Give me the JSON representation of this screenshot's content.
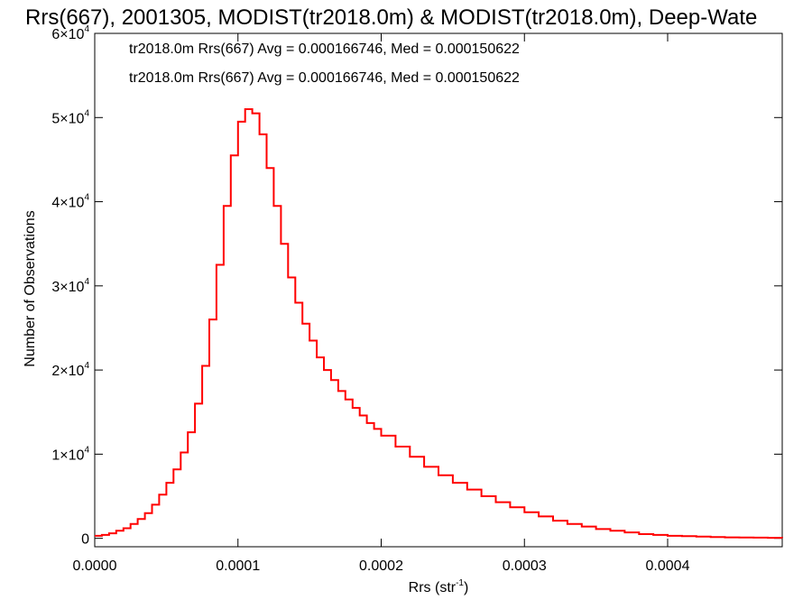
{
  "chart_data": {
    "type": "line",
    "title": "Rrs(667), 2001305, MODIST(tr2018.0m) & MODIST(tr2018.0m), Deep-Wate",
    "xlabel_prefix": "Rrs (str",
    "xlabel_sup": "-1",
    "xlabel_suffix": ")",
    "ylabel": "Number of Observations",
    "xlim": [
      0,
      0.00048
    ],
    "ylim": [
      -1000,
      60000
    ],
    "x_ticks": [
      {
        "value": 0.0,
        "label": "0.0000"
      },
      {
        "value": 0.0001,
        "label": "0.0001"
      },
      {
        "value": 0.0002,
        "label": "0.0002"
      },
      {
        "value": 0.0003,
        "label": "0.0003"
      },
      {
        "value": 0.0004,
        "label": "0.0004"
      }
    ],
    "y_ticks": [
      {
        "value": 0,
        "label": "0",
        "sup": ""
      },
      {
        "value": 10000,
        "label": "1×10",
        "sup": "4"
      },
      {
        "value": 20000,
        "label": "2×10",
        "sup": "4"
      },
      {
        "value": 30000,
        "label": "3×10",
        "sup": "4"
      },
      {
        "value": 40000,
        "label": "4×10",
        "sup": "4"
      },
      {
        "value": 50000,
        "label": "5×10",
        "sup": "4"
      },
      {
        "value": 60000,
        "label": "6×10",
        "sup": "4"
      }
    ],
    "annotations": [
      {
        "text": "tr2018.0m Rrs(667) Avg = 0.000166746, Med = 0.000150622",
        "color": "#000000"
      },
      {
        "text": "tr2018.0m Rrs(667) Avg = 0.000166746, Med = 0.000150622",
        "color": "#ff0000"
      }
    ],
    "series": [
      {
        "color": "#ff0000",
        "style": "step",
        "x": [
          0.0,
          5e-06,
          1e-05,
          1.5e-05,
          2e-05,
          2.5e-05,
          3e-05,
          3.5e-05,
          4e-05,
          4.5e-05,
          5e-05,
          5.5e-05,
          6e-05,
          6.5e-05,
          7e-05,
          7.5e-05,
          8e-05,
          8.5e-05,
          9e-05,
          9.5e-05,
          0.0001,
          0.000105,
          0.00011,
          0.000115,
          0.00012,
          0.000125,
          0.00013,
          0.000135,
          0.00014,
          0.000145,
          0.00015,
          0.000155,
          0.00016,
          0.000165,
          0.00017,
          0.000175,
          0.00018,
          0.000185,
          0.00019,
          0.000195,
          0.0002,
          0.00021,
          0.00022,
          0.00023,
          0.00024,
          0.00025,
          0.00026,
          0.00027,
          0.00028,
          0.00029,
          0.0003,
          0.00031,
          0.00032,
          0.00033,
          0.00034,
          0.00035,
          0.00036,
          0.00037,
          0.00038,
          0.00039,
          0.0004,
          0.00041,
          0.00042,
          0.00043,
          0.00044,
          0.00045,
          0.00046,
          0.00047,
          0.00048
        ],
        "y": [
          300,
          400,
          600,
          900,
          1200,
          1700,
          2300,
          3000,
          4000,
          5200,
          6600,
          8200,
          10200,
          12600,
          16000,
          20500,
          26000,
          32500,
          39500,
          45500,
          49500,
          51000,
          50500,
          48000,
          44000,
          39500,
          35000,
          31000,
          28000,
          25500,
          23500,
          21500,
          20000,
          18800,
          17500,
          16500,
          15500,
          14600,
          13700,
          13000,
          12200,
          10900,
          9700,
          8500,
          7500,
          6600,
          5800,
          5000,
          4300,
          3700,
          3100,
          2600,
          2100,
          1700,
          1400,
          1100,
          900,
          700,
          500,
          400,
          300,
          250,
          200,
          150,
          120,
          100,
          80,
          60,
          50
        ]
      }
    ]
  }
}
